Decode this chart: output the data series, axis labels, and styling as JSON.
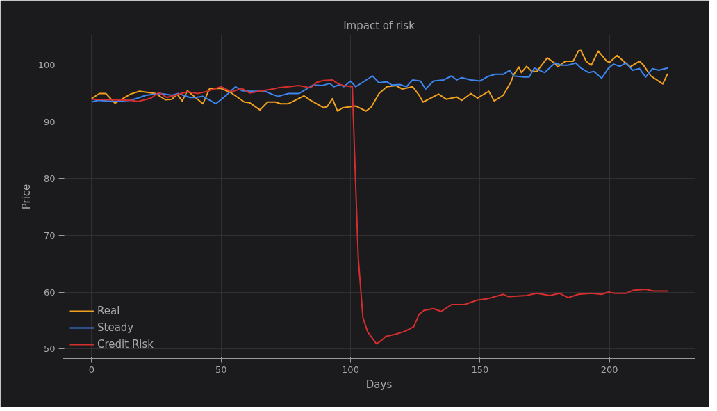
{
  "chart_data": {
    "type": "line",
    "title": "Impact of risk",
    "xlabel": "Days",
    "ylabel": "Price",
    "xlim": [
      -11.1,
      233.1
    ],
    "ylim": [
      48.3,
      105.3
    ],
    "xticks": [
      0,
      50,
      100,
      150,
      200
    ],
    "yticks": [
      50,
      60,
      70,
      80,
      90,
      100
    ],
    "grid": true,
    "legend": "bottom left",
    "line_style": "solid",
    "marker": "none",
    "series": [
      {
        "name": "Real",
        "color": "#f0a21e",
        "x": [
          0,
          3,
          5.5,
          9,
          15,
          18.5,
          24.7,
          28.5,
          31,
          33,
          35,
          37,
          43,
          45.6,
          50,
          54,
          59,
          61,
          65,
          68,
          71,
          73,
          76,
          82,
          84.6,
          89.6,
          91,
          93,
          95,
          97,
          102,
          106,
          108,
          111,
          114,
          117.6,
          120,
          124,
          126.5,
          128,
          131,
          134,
          137,
          141,
          143,
          146.5,
          149,
          153.4,
          155.5,
          159,
          162,
          163,
          165,
          166,
          168,
          170,
          172,
          176,
          179,
          180,
          183,
          186,
          188,
          189,
          191,
          193,
          195.7,
          199,
          200,
          203,
          206,
          208,
          211.6,
          213,
          216,
          220.6,
          222.5
        ],
        "values": [
          94.1,
          95,
          95,
          93.3,
          94.9,
          95.4,
          95,
          93.9,
          94,
          94.9,
          93.7,
          95.5,
          93.2,
          95.9,
          95.9,
          95.1,
          93.5,
          93.4,
          92.1,
          93.5,
          93.5,
          93.2,
          93.2,
          94.6,
          93.8,
          92.5,
          92.7,
          94.1,
          91.9,
          92.5,
          92.8,
          91.9,
          92.6,
          95,
          96.2,
          96.4,
          95.8,
          96.2,
          94.7,
          93.5,
          94.2,
          94.9,
          94,
          94.4,
          93.8,
          95,
          94.2,
          95.4,
          93.7,
          94.7,
          97.1,
          98.3,
          99.7,
          98.7,
          99.8,
          98.9,
          98.9,
          101.3,
          100.3,
          99.7,
          100.7,
          100.7,
          102.5,
          102.6,
          100.7,
          100,
          102.5,
          100.7,
          100.5,
          101.7,
          100.5,
          99.7,
          100.7,
          100.1,
          98.1,
          96.7,
          98.5
        ]
      },
      {
        "name": "Steady",
        "color": "#3d86f0",
        "x": [
          0,
          2.5,
          8.5,
          15,
          18.5,
          21,
          26.6,
          31,
          33.5,
          38,
          40,
          43,
          48,
          52,
          55.6,
          58,
          61,
          67,
          69.6,
          72,
          76,
          80,
          83,
          85.5,
          89,
          92,
          93.5,
          96,
          97.4,
          100,
          102,
          108.5,
          111,
          114,
          116,
          119,
          121.6,
          124,
          127,
          129,
          132,
          136,
          139,
          141,
          143,
          146.5,
          150,
          153,
          156,
          159,
          161.5,
          163,
          167,
          169,
          171,
          175,
          179,
          181.6,
          184,
          187,
          189,
          192,
          194,
          197,
          199.5,
          201.6,
          204,
          206.5,
          209,
          211.6,
          214,
          216.6,
          219,
          222.5
        ],
        "values": [
          93.5,
          93.8,
          93.6,
          93.8,
          94.3,
          94.7,
          95,
          94.7,
          95,
          94.3,
          94.3,
          94.5,
          93.2,
          94.7,
          96.2,
          95.5,
          95.4,
          95.4,
          94.9,
          94.5,
          95,
          95,
          95.8,
          96.5,
          96.4,
          96.8,
          96.2,
          96.6,
          96.2,
          97.2,
          96.2,
          98.1,
          96.9,
          97.1,
          96.5,
          96.6,
          96.2,
          97.4,
          97.2,
          95.8,
          97.2,
          97.4,
          98.1,
          97.4,
          97.8,
          97.4,
          97.2,
          98,
          98.4,
          98.4,
          99.1,
          98.1,
          97.9,
          97.9,
          99.5,
          98.7,
          100.4,
          100,
          100,
          100.4,
          99.5,
          98.7,
          98.9,
          97.7,
          99.4,
          100.2,
          99.8,
          100.4,
          99.1,
          99.4,
          97.9,
          99.4,
          99.1,
          99.5
        ]
      },
      {
        "name": "Credit Risk",
        "color": "#d42f2f",
        "x": [
          0,
          15,
          18,
          23,
          26,
          29,
          37,
          41,
          44,
          50,
          54,
          58,
          61,
          66,
          70,
          72,
          76,
          80,
          84.6,
          87,
          89.5,
          93,
          95,
          97.2,
          100.7,
          101.7,
          103,
          104.8,
          106.6,
          110,
          112,
          113.6,
          117.5,
          121,
          124.4,
          126.5,
          128.4,
          132,
          135,
          139,
          144,
          149,
          152.6,
          159,
          161,
          168,
          172,
          177,
          180.7,
          184,
          188,
          193,
          197,
          199.6,
          202,
          206.5,
          209,
          214,
          217,
          222.5
        ],
        "values": [
          94,
          93.8,
          93.6,
          94.2,
          95.2,
          94.3,
          95.3,
          95,
          95.3,
          96.2,
          95.3,
          95.9,
          95.1,
          95.5,
          95.8,
          96,
          96.2,
          96.4,
          96,
          97,
          97.3,
          97.4,
          96.8,
          96.4,
          96.2,
          82.7,
          66,
          55.5,
          53,
          50.9,
          51.5,
          52.2,
          52.6,
          53.1,
          53.9,
          56.1,
          56.8,
          57.1,
          56.6,
          57.8,
          57.8,
          58.6,
          58.8,
          59.6,
          59.2,
          59.4,
          59.8,
          59.4,
          59.8,
          59,
          59.6,
          59.8,
          59.6,
          60,
          59.8,
          59.8,
          60.3,
          60.5,
          60.2,
          60.2
        ]
      }
    ]
  }
}
